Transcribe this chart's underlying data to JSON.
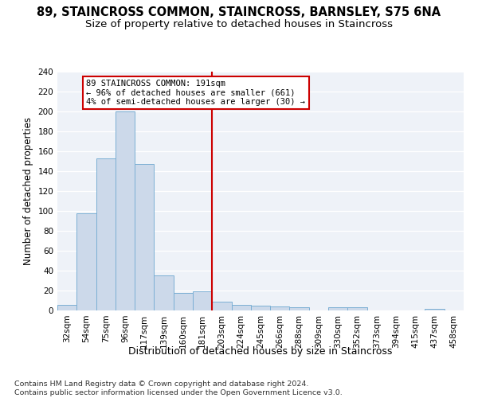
{
  "title": "89, STAINCROSS COMMON, STAINCROSS, BARNSLEY, S75 6NA",
  "subtitle": "Size of property relative to detached houses in Staincross",
  "xlabel": "Distribution of detached houses by size in Staincross",
  "ylabel": "Number of detached properties",
  "categories": [
    "32sqm",
    "54sqm",
    "75sqm",
    "96sqm",
    "117sqm",
    "139sqm",
    "160sqm",
    "181sqm",
    "203sqm",
    "224sqm",
    "245sqm",
    "266sqm",
    "288sqm",
    "309sqm",
    "330sqm",
    "352sqm",
    "373sqm",
    "394sqm",
    "415sqm",
    "437sqm",
    "458sqm"
  ],
  "values": [
    6,
    98,
    153,
    200,
    147,
    35,
    18,
    19,
    9,
    6,
    5,
    4,
    3,
    0,
    3,
    3,
    0,
    0,
    0,
    2,
    0
  ],
  "bar_color": "#ccd9ea",
  "bar_edge_color": "#7bafd4",
  "vline_color": "#cc0000",
  "annotation_text": "89 STAINCROSS COMMON: 191sqm\n← 96% of detached houses are smaller (661)\n4% of semi-detached houses are larger (30) →",
  "annotation_box_color": "#ffffff",
  "annotation_box_edge": "#cc0000",
  "ylim": [
    0,
    240
  ],
  "yticks": [
    0,
    20,
    40,
    60,
    80,
    100,
    120,
    140,
    160,
    180,
    200,
    220,
    240
  ],
  "footer": "Contains HM Land Registry data © Crown copyright and database right 2024.\nContains public sector information licensed under the Open Government Licence v3.0.",
  "bg_color": "#eef2f8",
  "fig_bg_color": "#ffffff",
  "title_fontsize": 10.5,
  "subtitle_fontsize": 9.5,
  "xlabel_fontsize": 9,
  "ylabel_fontsize": 8.5,
  "tick_fontsize": 7.5,
  "footer_fontsize": 6.8,
  "vline_pos": 7.5
}
